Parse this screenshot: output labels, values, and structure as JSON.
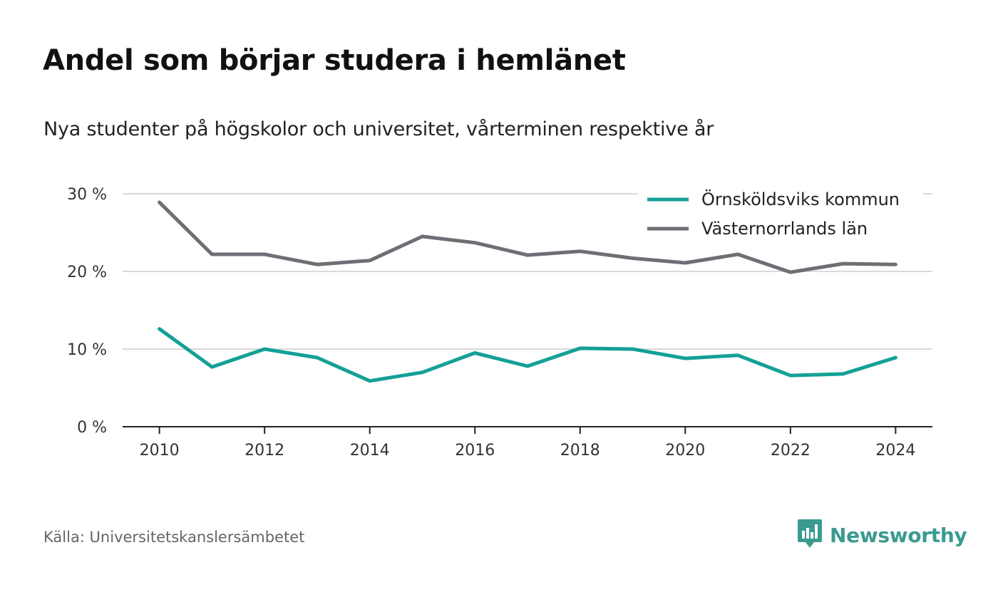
{
  "title": "Andel som börjar studera i hemlänet",
  "subtitle": "Nya studenter på högskolor och universitet, vårterminen respektive år",
  "source": "Källa: Universitetskanslersämbetet",
  "brand": {
    "name": "Newsworthy",
    "icon": "newsworthy-logo-icon",
    "color": "#3a9a90"
  },
  "chart_data": {
    "type": "line",
    "x": [
      2010,
      2011,
      2012,
      2013,
      2014,
      2015,
      2016,
      2017,
      2018,
      2019,
      2020,
      2021,
      2022,
      2023,
      2024
    ],
    "x_ticks": [
      "2010",
      "2012",
      "2014",
      "2016",
      "2018",
      "2020",
      "2022",
      "2024"
    ],
    "y_ticks": [
      "0 %",
      "10 %",
      "20 %",
      "30 %"
    ],
    "ylim": [
      0,
      30
    ],
    "xlim": [
      2009.3,
      2024.7
    ],
    "grid": true,
    "legend_position": "top-right",
    "series": [
      {
        "name": "Örnsköldsviks kommun",
        "color": "#14a096",
        "values": [
          12.6,
          7.7,
          10.0,
          8.9,
          5.9,
          7.0,
          9.5,
          7.8,
          10.1,
          10.0,
          8.8,
          9.2,
          6.6,
          6.8,
          8.9
        ]
      },
      {
        "name": "Västernorrlands län",
        "color": "#6e6e75",
        "values": [
          28.9,
          22.2,
          22.2,
          20.9,
          21.4,
          24.5,
          23.7,
          22.1,
          22.6,
          21.7,
          21.1,
          22.2,
          19.9,
          21.0,
          20.9
        ]
      }
    ]
  }
}
